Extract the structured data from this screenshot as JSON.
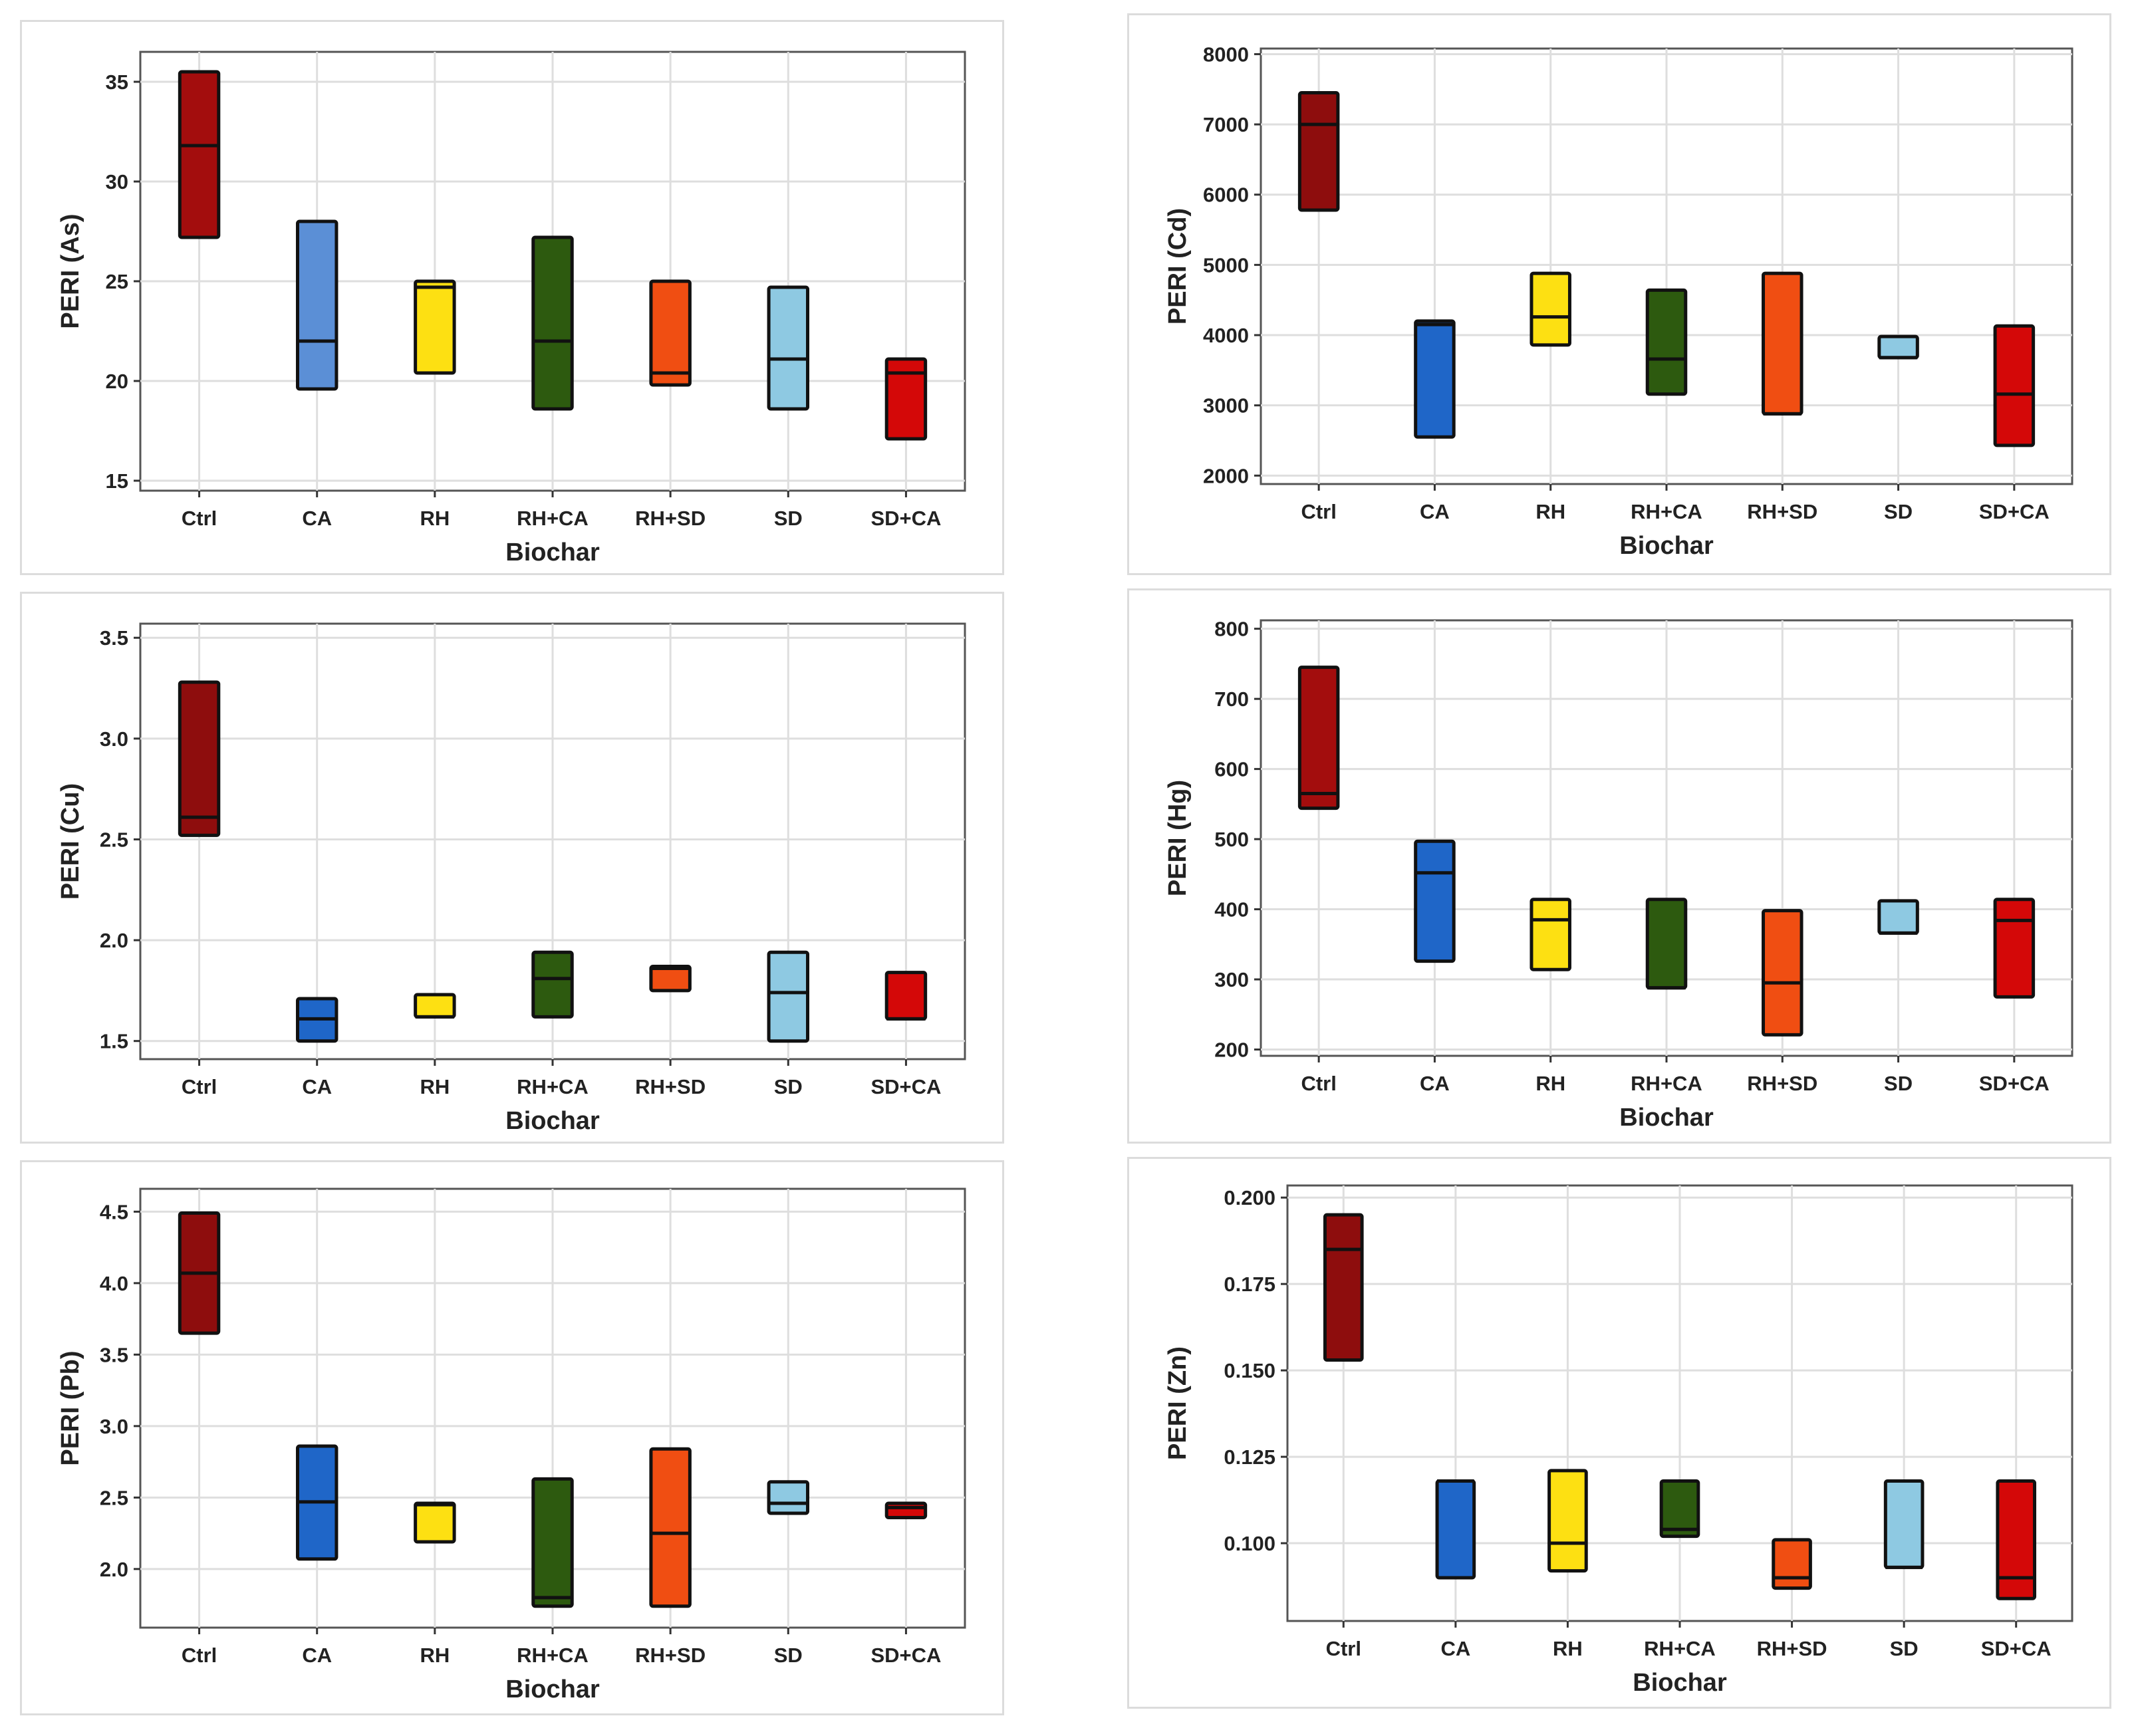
{
  "figure": {
    "caption": ""
  },
  "chart_data": [
    {
      "type": "box",
      "id": "as",
      "title": "",
      "xlabel": "Biochar",
      "ylabel": "PERI (As)",
      "ylim": [
        14.5,
        36.5
      ],
      "yticks": [
        15,
        20,
        25,
        30,
        35
      ],
      "ytick_labels": [
        "15",
        "20",
        "25",
        "30",
        "35"
      ],
      "categories": [
        "Ctrl",
        "CA",
        "RH",
        "RH+CA",
        "RH+SD",
        "SD",
        "SD+CA"
      ],
      "colors": [
        "#a30d0d",
        "#5b8fd6",
        "#fde012",
        "#2d5a0f",
        "#f04e12",
        "#8ec9e2",
        "#d40808"
      ],
      "q1": [
        27.2,
        19.6,
        20.4,
        18.6,
        19.8,
        18.6,
        17.1
      ],
      "median": [
        31.8,
        22.0,
        24.7,
        22.0,
        20.4,
        21.1,
        20.4
      ],
      "q3": [
        35.5,
        28.0,
        25.0,
        27.2,
        25.0,
        24.7,
        21.1
      ],
      "grid": true
    },
    {
      "type": "box",
      "id": "cd",
      "title": "",
      "xlabel": "Biochar",
      "ylabel": "PERI (Cd)",
      "ylim": [
        1880,
        8080
      ],
      "yticks": [
        2000,
        3000,
        4000,
        5000,
        6000,
        7000,
        8000
      ],
      "ytick_labels": [
        "2000",
        "3000",
        "4000",
        "5000",
        "6000",
        "7000",
        "8000"
      ],
      "categories": [
        "Ctrl",
        "CA",
        "RH",
        "RH+CA",
        "RH+SD",
        "SD",
        "SD+CA"
      ],
      "colors": [
        "#8e0d0d",
        "#1f66c8",
        "#fde012",
        "#2d5a0f",
        "#f04e12",
        "#8ec9e2",
        "#d40808"
      ],
      "q1": [
        5780,
        2550,
        3860,
        3160,
        2880,
        3680,
        2430
      ],
      "median": [
        7000,
        4150,
        4260,
        3660,
        2880,
        3680,
        3160
      ],
      "q3": [
        7450,
        4200,
        4880,
        4640,
        4880,
        3980,
        4130
      ],
      "grid": true
    },
    {
      "type": "box",
      "id": "cu",
      "title": "",
      "xlabel": "Biochar",
      "ylabel": "PERI (Cu)",
      "ylim": [
        1.41,
        3.57
      ],
      "yticks": [
        1.5,
        2.0,
        2.5,
        3.0,
        3.5
      ],
      "ytick_labels": [
        "1.5",
        "2.0",
        "2.5",
        "3.0",
        "3.5"
      ],
      "categories": [
        "Ctrl",
        "CA",
        "RH",
        "RH+CA",
        "RH+SD",
        "SD",
        "SD+CA"
      ],
      "colors": [
        "#8e0d0d",
        "#1f66c8",
        "#fde012",
        "#2d5a0f",
        "#f04e12",
        "#8ec9e2",
        "#d40808"
      ],
      "q1": [
        2.52,
        1.5,
        1.62,
        1.62,
        1.75,
        1.5,
        1.61
      ],
      "median": [
        2.61,
        1.61,
        1.62,
        1.81,
        1.86,
        1.74,
        1.61
      ],
      "q3": [
        3.28,
        1.71,
        1.73,
        1.94,
        1.87,
        1.94,
        1.84
      ],
      "grid": true
    },
    {
      "type": "box",
      "id": "hg",
      "title": "",
      "xlabel": "Biochar",
      "ylabel": "PERI (Hg)",
      "ylim": [
        191,
        812
      ],
      "yticks": [
        200,
        300,
        400,
        500,
        600,
        700,
        800
      ],
      "ytick_labels": [
        "200",
        "300",
        "400",
        "500",
        "600",
        "700",
        "800"
      ],
      "categories": [
        "Ctrl",
        "CA",
        "RH",
        "RH+CA",
        "RH+SD",
        "SD",
        "SD+CA"
      ],
      "colors": [
        "#a30d0d",
        "#1f66c8",
        "#fde012",
        "#2d5a0f",
        "#f04e12",
        "#8ec9e2",
        "#d40808"
      ],
      "q1": [
        544,
        326,
        314,
        288,
        221,
        366,
        275
      ],
      "median": [
        565,
        452,
        385,
        288,
        295,
        366,
        384
      ],
      "q3": [
        745,
        497,
        414,
        414,
        398,
        412,
        414
      ],
      "grid": true
    },
    {
      "type": "box",
      "id": "pb",
      "title": "",
      "xlabel": "Biochar",
      "ylabel": "PERI (Pb)",
      "ylim": [
        1.59,
        4.66
      ],
      "yticks": [
        2.0,
        2.5,
        3.0,
        3.5,
        4.0,
        4.5
      ],
      "ytick_labels": [
        "2.0",
        "2.5",
        "3.0",
        "3.5",
        "4.0",
        "4.5"
      ],
      "categories": [
        "Ctrl",
        "CA",
        "RH",
        "RH+CA",
        "RH+SD",
        "SD",
        "SD+CA"
      ],
      "colors": [
        "#8e0d0d",
        "#1f66c8",
        "#fde012",
        "#2d5a0f",
        "#f04e12",
        "#8ec9e2",
        "#d40808"
      ],
      "q1": [
        3.65,
        2.07,
        2.19,
        1.74,
        1.74,
        2.39,
        2.36
      ],
      "median": [
        4.07,
        2.47,
        2.45,
        1.8,
        2.25,
        2.46,
        2.43
      ],
      "q3": [
        4.49,
        2.86,
        2.46,
        2.63,
        2.84,
        2.61,
        2.46
      ],
      "grid": true
    },
    {
      "type": "box",
      "id": "zn",
      "title": "",
      "xlabel": "Biochar",
      "ylabel": "PERI (Zn)",
      "ylim": [
        0.0775,
        0.2035
      ],
      "yticks": [
        0.1,
        0.125,
        0.15,
        0.175,
        0.2
      ],
      "ytick_labels": [
        "0.100",
        "0.125",
        "0.150",
        "0.175",
        "0.200"
      ],
      "categories": [
        "Ctrl",
        "CA",
        "RH",
        "RH+CA",
        "RH+SD",
        "SD",
        "SD+CA"
      ],
      "colors": [
        "#8e0d0d",
        "#1f66c8",
        "#fde012",
        "#2d5a0f",
        "#f04e12",
        "#8ec9e2",
        "#d40808"
      ],
      "q1": [
        0.153,
        0.09,
        0.092,
        0.102,
        0.087,
        0.093,
        0.084
      ],
      "median": [
        0.185,
        0.118,
        0.1,
        0.104,
        0.09,
        0.093,
        0.09
      ],
      "q3": [
        0.195,
        0.118,
        0.121,
        0.118,
        0.101,
        0.118,
        0.118
      ],
      "grid": true
    }
  ]
}
